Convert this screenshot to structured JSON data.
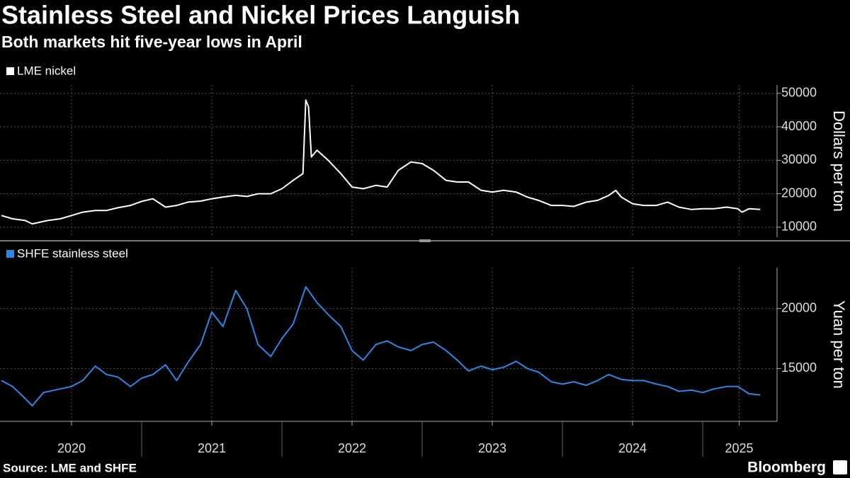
{
  "title": "Stainless Steel and Nickel Prices Languish",
  "subtitle": "Both markets hit five-year lows in April",
  "source": "Source: LME and SHFE",
  "brand": "Bloomberg",
  "chart_data": [
    {
      "type": "line",
      "y_label": "Dollars per ton",
      "grid": true,
      "ylim": [
        7000,
        52500
      ],
      "yticks": [
        10000,
        20000,
        30000,
        40000,
        50000
      ],
      "x": [
        2020.0,
        2020.08,
        2020.17,
        2020.22,
        2020.33,
        2020.42,
        2020.5,
        2020.58,
        2020.67,
        2020.75,
        2020.83,
        2020.92,
        2021.0,
        2021.08,
        2021.17,
        2021.25,
        2021.33,
        2021.42,
        2021.5,
        2021.58,
        2021.67,
        2021.75,
        2021.83,
        2021.92,
        2022.0,
        2022.08,
        2022.15,
        2022.17,
        2022.19,
        2022.21,
        2022.25,
        2022.33,
        2022.42,
        2022.5,
        2022.58,
        2022.67,
        2022.75,
        2022.83,
        2022.92,
        2023.0,
        2023.08,
        2023.17,
        2023.25,
        2023.33,
        2023.42,
        2023.5,
        2023.58,
        2023.67,
        2023.75,
        2023.83,
        2023.92,
        2024.0,
        2024.08,
        2024.17,
        2024.25,
        2024.33,
        2024.38,
        2024.42,
        2024.5,
        2024.58,
        2024.67,
        2024.75,
        2024.83,
        2024.92,
        2025.0,
        2025.08,
        2025.17,
        2025.25,
        2025.28,
        2025.33,
        2025.41
      ],
      "series": [
        {
          "name": "LME nickel",
          "color": "#ffffff",
          "values": [
            13500,
            12500,
            12000,
            11000,
            12000,
            12500,
            13500,
            14500,
            15000,
            15000,
            15800,
            16500,
            17700,
            18500,
            16000,
            16500,
            17500,
            17800,
            18500,
            19000,
            19500,
            19200,
            20000,
            20000,
            21500,
            24000,
            26000,
            48000,
            46000,
            31000,
            33000,
            30000,
            26000,
            22000,
            21500,
            22500,
            22000,
            27000,
            29500,
            29000,
            27000,
            24000,
            23500,
            23500,
            21000,
            20500,
            21000,
            20500,
            19000,
            18000,
            16500,
            16500,
            16200,
            17500,
            18000,
            19500,
            21000,
            19000,
            17000,
            16500,
            16500,
            17500,
            16000,
            15300,
            15500,
            15500,
            16000,
            15500,
            14500,
            15500,
            15300
          ]
        }
      ]
    },
    {
      "type": "line",
      "y_label": "Yuan per ton",
      "grid": true,
      "xlim": [
        2019.99,
        2025.52
      ],
      "xticks": [
        {
          "value": 2020.5,
          "label": "2020"
        },
        {
          "value": 2021.5,
          "label": "2021"
        },
        {
          "value": 2022.5,
          "label": "2022"
        },
        {
          "value": 2023.5,
          "label": "2023"
        },
        {
          "value": 2024.5,
          "label": "2024"
        },
        {
          "value": 2025.26,
          "label": "2025"
        }
      ],
      "ylim": [
        10600,
        23400
      ],
      "yticks": [
        15000,
        20000
      ],
      "x": [
        2020.0,
        2020.08,
        2020.17,
        2020.22,
        2020.3,
        2020.42,
        2020.5,
        2020.58,
        2020.67,
        2020.75,
        2020.83,
        2020.92,
        2021.0,
        2021.08,
        2021.17,
        2021.25,
        2021.33,
        2021.42,
        2021.5,
        2021.58,
        2021.67,
        2021.75,
        2021.83,
        2021.92,
        2022.0,
        2022.08,
        2022.17,
        2022.25,
        2022.33,
        2022.42,
        2022.5,
        2022.58,
        2022.67,
        2022.75,
        2022.83,
        2022.92,
        2023.0,
        2023.08,
        2023.17,
        2023.25,
        2023.33,
        2023.42,
        2023.5,
        2023.58,
        2023.67,
        2023.75,
        2023.83,
        2023.92,
        2024.0,
        2024.08,
        2024.17,
        2024.25,
        2024.33,
        2024.42,
        2024.5,
        2024.58,
        2024.67,
        2024.75,
        2024.83,
        2024.92,
        2025.0,
        2025.08,
        2025.17,
        2025.25,
        2025.33,
        2025.41
      ],
      "series": [
        {
          "name": "SHFE stainless steel",
          "color": "#2e86e6",
          "values": [
            14000,
            13500,
            12500,
            11900,
            13000,
            13300,
            13500,
            14000,
            15200,
            14500,
            14300,
            13500,
            14200,
            14500,
            15300,
            14000,
            15500,
            17000,
            19700,
            18500,
            21500,
            20000,
            17000,
            16000,
            17500,
            18700,
            21800,
            20500,
            19500,
            18500,
            16500,
            15700,
            17000,
            17300,
            16800,
            16500,
            17000,
            17200,
            16500,
            15700,
            14800,
            15200,
            14900,
            15100,
            15600,
            15000,
            14700,
            13900,
            13700,
            13900,
            13600,
            14000,
            14500,
            14100,
            14000,
            14000,
            13700,
            13500,
            13100,
            13200,
            13000,
            13300,
            13500,
            13500,
            12900,
            12800
          ]
        }
      ]
    }
  ]
}
